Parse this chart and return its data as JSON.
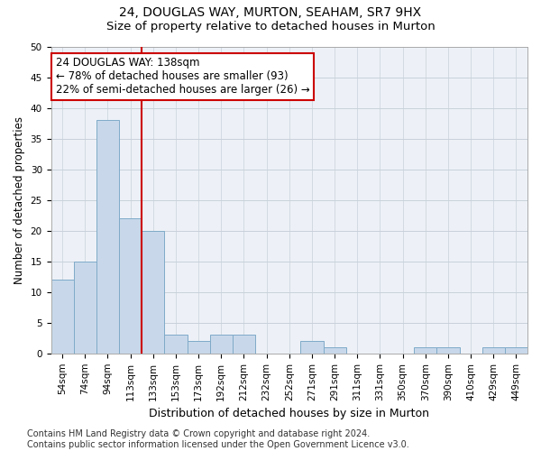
{
  "title": "24, DOUGLAS WAY, MURTON, SEAHAM, SR7 9HX",
  "subtitle": "Size of property relative to detached houses in Murton",
  "xlabel": "Distribution of detached houses by size in Murton",
  "ylabel": "Number of detached properties",
  "categories": [
    "54sqm",
    "74sqm",
    "94sqm",
    "113sqm",
    "133sqm",
    "153sqm",
    "173sqm",
    "192sqm",
    "212sqm",
    "232sqm",
    "252sqm",
    "271sqm",
    "291sqm",
    "311sqm",
    "331sqm",
    "350sqm",
    "370sqm",
    "390sqm",
    "410sqm",
    "429sqm",
    "449sqm"
  ],
  "values": [
    12,
    15,
    38,
    22,
    20,
    3,
    2,
    3,
    3,
    0,
    0,
    2,
    1,
    0,
    0,
    0,
    1,
    1,
    0,
    1,
    1
  ],
  "bar_color": "#c8d8ea",
  "bar_edge_color": "#7faac8",
  "grid_color": "#c8d0da",
  "bg_color": "#edf1f7",
  "annotation_line1": "24 DOUGLAS WAY: 138sqm",
  "annotation_line2": "← 78% of detached houses are smaller (93)",
  "annotation_line3": "22% of semi-detached houses are larger (26) →",
  "annotation_box_facecolor": "#ffffff",
  "annotation_box_edgecolor": "#cc0000",
  "vline_color": "#cc0000",
  "vline_x_index": 4,
  "ylim": [
    0,
    50
  ],
  "yticks": [
    0,
    5,
    10,
    15,
    20,
    25,
    30,
    35,
    40,
    45,
    50
  ],
  "footnote": "Contains HM Land Registry data © Crown copyright and database right 2024.\nContains public sector information licensed under the Open Government Licence v3.0.",
  "title_fontsize": 10,
  "subtitle_fontsize": 9.5,
  "xlabel_fontsize": 9,
  "ylabel_fontsize": 8.5,
  "tick_fontsize": 7.5,
  "annotation_fontsize": 8.5,
  "footnote_fontsize": 7
}
